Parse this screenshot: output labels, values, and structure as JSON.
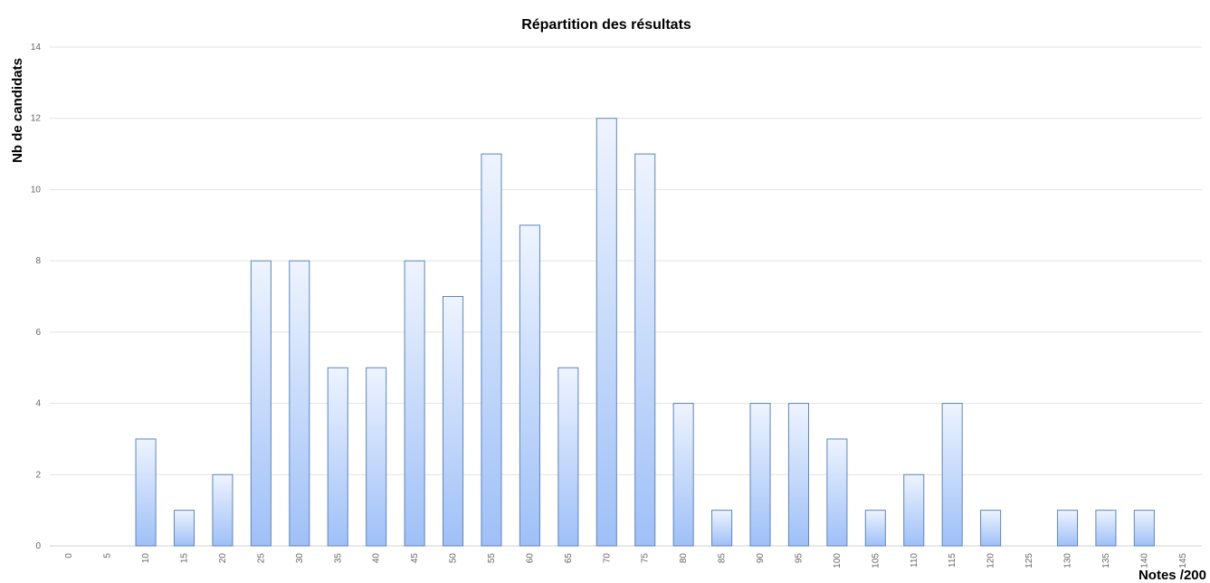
{
  "chart_data": {
    "type": "bar",
    "title": "Répartition des résultats",
    "xlabel": "Notes /200",
    "ylabel": "Nb de candidats",
    "categories": [
      "0",
      "5",
      "10",
      "15",
      "20",
      "25",
      "30",
      "35",
      "40",
      "45",
      "50",
      "55",
      "60",
      "65",
      "70",
      "75",
      "80",
      "85",
      "90",
      "95",
      "100",
      "105",
      "110",
      "115",
      "120",
      "125",
      "130",
      "135",
      "140",
      "145"
    ],
    "values": [
      0,
      0,
      3,
      1,
      2,
      8,
      8,
      5,
      5,
      8,
      7,
      11,
      9,
      5,
      12,
      11,
      4,
      1,
      4,
      4,
      3,
      1,
      2,
      4,
      1,
      0,
      1,
      1,
      1,
      0
    ],
    "ylim": [
      0,
      14
    ],
    "yticks": [
      0,
      2,
      4,
      6,
      8,
      10,
      12,
      14
    ],
    "grid": true,
    "legend": "none",
    "colors": {
      "bar_top": "#eef4ff",
      "bar_bottom": "#9fc0f7",
      "bar_border": "#5f86b8",
      "grid": "#e3e3e3"
    }
  }
}
